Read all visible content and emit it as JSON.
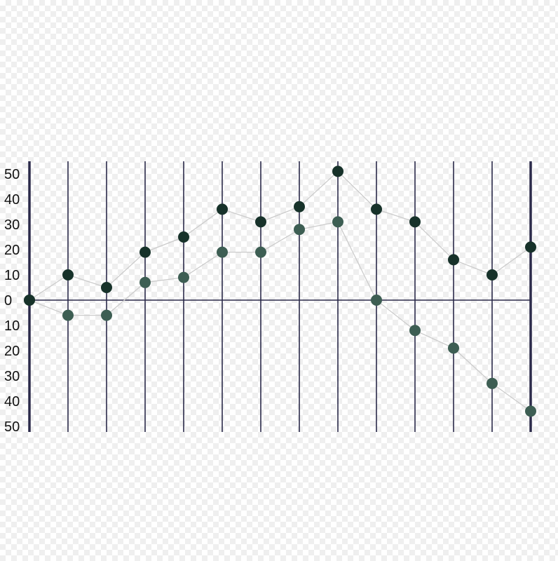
{
  "chart_data": {
    "type": "line",
    "x": [
      0,
      1,
      2,
      3,
      4,
      5,
      6,
      7,
      8,
      9,
      10,
      11,
      12,
      13
    ],
    "y_tick_labels": [
      "50",
      "40",
      "30",
      "20",
      "10",
      "0",
      "10",
      "20",
      "30",
      "40",
      "50"
    ],
    "ylim": [
      -50,
      50
    ],
    "grid": "vertical",
    "series": [
      {
        "color": "#17322a",
        "values": [
          0,
          10,
          5,
          19,
          25,
          36,
          31,
          37,
          51,
          36,
          31,
          16,
          10,
          21
        ]
      },
      {
        "color": "#3d5e53",
        "values": [
          0,
          -6,
          -6,
          7,
          9,
          19,
          19,
          28,
          31,
          0,
          -12,
          -19,
          -33,
          -44
        ]
      }
    ],
    "colors": {
      "gridline": "#2b2a4a",
      "axis": "#2b2a4a",
      "connector": "#cccccc"
    }
  }
}
